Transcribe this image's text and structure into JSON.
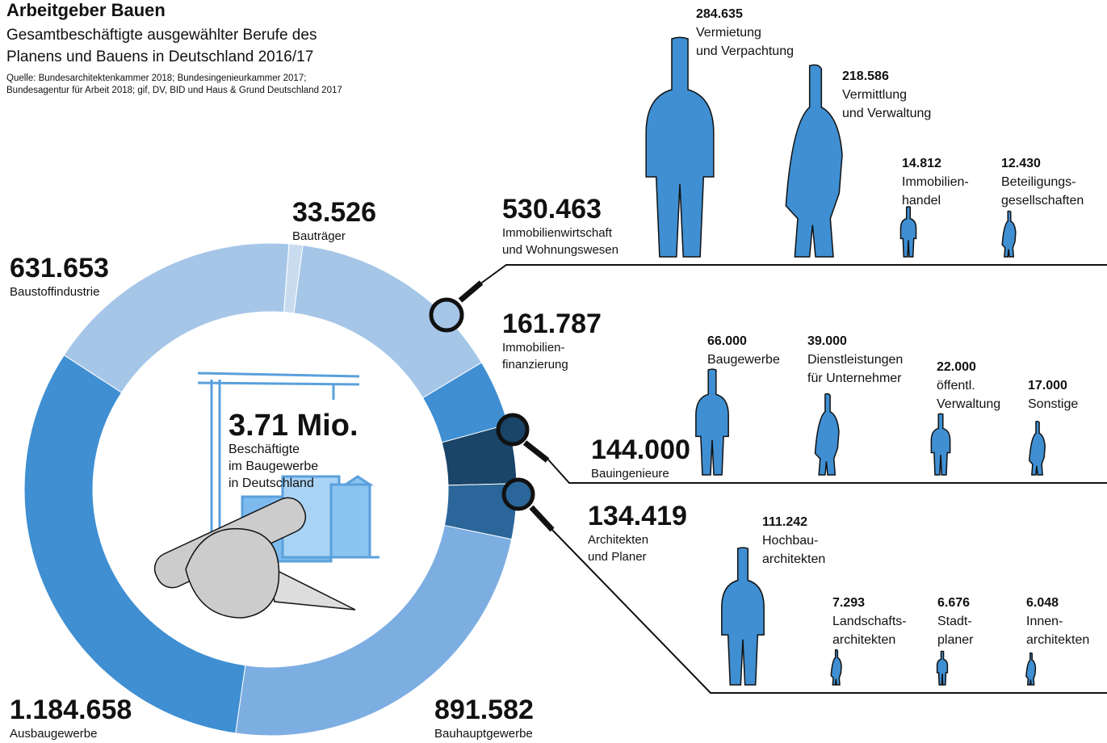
{
  "chart_data": {
    "type": "pie",
    "title": "Arbeitgeber Bauen",
    "subtitle": "Gesamtbeschäftigte ausgewählter Berufe des\nPlanens und Bauens in Deutschland 2016/17",
    "source": "Quelle: Bundesarchitektenkammer 2018; Bundesingenieurkammer 2017;\nBundesagentur für Arbeit 2018; gif, DV, BID und Haus & Grund Deutschland 2017",
    "center_label": "3.71 Mio.",
    "center_text": "Beschäftigte\nim Baugewerbe\nin Deutschland",
    "categories": [
      "Bauträger",
      "Immobilienwirtschaft\nund Wohnungswesen",
      "Immobilien-\nfinanzierung",
      "Bauingenieure",
      "Architekten\nund Planer",
      "Bauhauptgewerbe",
      "Ausbaugewerbe",
      "Baustoffindustrie"
    ],
    "values": [
      33526,
      530463,
      161787,
      144000,
      134419,
      891582,
      1184658,
      631653
    ],
    "value_labels": [
      "33.526",
      "530.463",
      "161.787",
      "144.000",
      "134.419",
      "891.582",
      "1.184.658",
      "631.653"
    ],
    "colors": [
      "#c9dcef",
      "#a6c6e8",
      "#3f8fd2",
      "#1a4468",
      "#2a6699",
      "#7daee2",
      "#3f8fd2",
      "#a6c6e8"
    ]
  },
  "breakdowns": [
    {
      "categories": [
        "Vermietung\nund Verpachtung",
        "Vermittlung\nund Verwaltung",
        "Immobilien-\nhandel",
        "Beteiligungs-\ngesellschaften"
      ],
      "values": [
        284635,
        218586,
        14812,
        12430
      ],
      "value_labels": [
        "284.635",
        "218.586",
        "14.812",
        "12.430"
      ]
    },
    {
      "categories": [
        "Baugewerbe",
        "Dienstleistungen\nfür Unternehmer",
        "öffentl.\nVerwaltung",
        "Sonstige"
      ],
      "values": [
        66000,
        39000,
        22000,
        17000
      ],
      "value_labels": [
        "66.000",
        "39.000",
        "22.000",
        "17.000"
      ]
    },
    {
      "categories": [
        "Hochbau-\narchitekten",
        "Landschafts-\narchitekten",
        "Stadt-\nplaner",
        "Innen-\narchitekten"
      ],
      "values": [
        111242,
        7293,
        6676,
        6048
      ],
      "value_labels": [
        "111.242",
        "7.293",
        "6.676",
        "6.048"
      ]
    }
  ]
}
